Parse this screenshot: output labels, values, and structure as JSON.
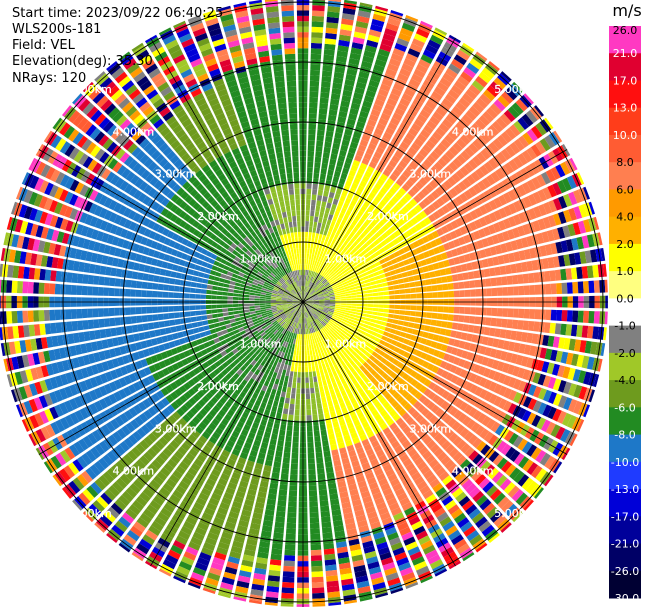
{
  "header": {
    "start_time": "Start time: 2023/09/22 06:40:25",
    "instrument": "WLS200s-181",
    "field": "Field: VEL",
    "elevation": "Elevation(deg): 35.30",
    "nrays": "NRays: 120"
  },
  "ring_labels": [
    "1.00km",
    "2.00km",
    "3.00km",
    "4.00km",
    "5.00km"
  ],
  "colorbar": {
    "unit": "m/s",
    "ticks": [
      "26.0",
      "21.0",
      "17.0",
      "13.0",
      "10.0",
      "8.0",
      "6.0",
      "4.0",
      "2.0",
      "1.0",
      "0.0",
      "-1.0",
      "-2.0",
      "-4.0",
      "-6.0",
      "-8.0",
      "-10.0",
      "-13.0",
      "-17.0",
      "-21.0",
      "-26.0",
      "-30.0"
    ],
    "colors": [
      "#ff39c2",
      "#e00030",
      "#ff0f0f",
      "#ff3d1a",
      "#ff5c33",
      "#ff7f50",
      "#ff9a00",
      "#ffb000",
      "#ffff00",
      "#ffff80",
      "#ffffff",
      "#808080",
      "#a0c828",
      "#6e9b1e",
      "#228b22",
      "#1e78c8",
      "#1f3bff",
      "#0000d8",
      "#00009a",
      "#000066",
      "#000033"
    ],
    "text_colors": [
      "#000",
      "#fff",
      "#fff",
      "#fff",
      "#fff",
      "#000",
      "#000",
      "#000",
      "#000",
      "#000",
      "#000",
      "#000",
      "#000",
      "#000",
      "#fff",
      "#fff",
      "#fff",
      "#fff",
      "#fff",
      "#fff",
      "#fff",
      "#fff"
    ]
  }
}
